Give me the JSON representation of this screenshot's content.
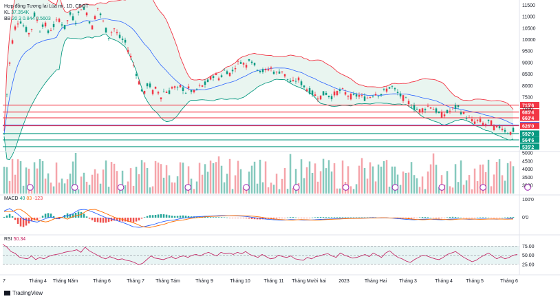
{
  "header": {
    "symbol_line": "Hợp đồng Tương lai Lúa mì, 1D, CBOT",
    "volume_label": "KL",
    "volume_value": "37.354K",
    "bb_label": "BB",
    "bb_value": "20 2 0.844 0.5603"
  },
  "price_axis": {
    "ticks": [
      "11500",
      "11000",
      "10500",
      "10000",
      "9500",
      "9000",
      "8500",
      "8000",
      "7500",
      "7000"
    ]
  },
  "horizontal_levels": [
    {
      "label": "715'6",
      "value": 7157.5,
      "color": "#f23645"
    },
    {
      "label": "685'4",
      "value": 6855,
      "color": "#f23645"
    },
    {
      "label": "660'4",
      "value": 6605,
      "color": "#f23645"
    },
    {
      "label": "628'6",
      "value": 6287.5,
      "color": "#2962ff"
    },
    {
      "label": "626'0",
      "value": 6260,
      "color": "#f23645"
    },
    {
      "label": "592'0",
      "value": 5920,
      "color": "#089981"
    },
    {
      "label": "564'6",
      "value": 5647.5,
      "color": "#089981"
    },
    {
      "label": "535'2",
      "value": 5352.5,
      "color": "#089981"
    }
  ],
  "volume_axis": {
    "ticks": [
      "5000",
      "4500",
      "4000",
      "3500",
      "3000"
    ]
  },
  "macd": {
    "label": "MACD",
    "v1": "40",
    "v2": "83",
    "v3": "-123",
    "ticks": [
      "100'0",
      "0'0"
    ]
  },
  "rsi": {
    "label": "RSI",
    "value": "50.34",
    "ticks": [
      "75.00",
      "50.00",
      "25.00"
    ]
  },
  "time_axis": {
    "labels": [
      "7",
      "Tháng 4",
      "Tháng Năm",
      "Tháng 6",
      "Tháng 7",
      "Tháng Tám",
      "Tháng 9",
      "Tháng 10",
      "Tháng 11",
      "Tháng Mười hai",
      "2023",
      "Tháng Hai",
      "Tháng 3",
      "Tháng 4",
      "Tháng 5",
      "Tháng 6"
    ]
  },
  "watermark": "TradingView",
  "colors": {
    "up": "#089981",
    "down": "#f23645",
    "upper_band": "#f23645",
    "lower_band": "#089981",
    "basis": "#2962ff",
    "band_fill": "#e3f3ec",
    "macd_line": "#2962ff",
    "signal_line": "#ff6d00",
    "rsi_line": "#c2185b",
    "rsi_fill": "#e8f4f4"
  },
  "chart_data": {
    "type": "candlestick",
    "price_range": [
      5200,
      11600
    ],
    "time_range": [
      "2022-03",
      "2023-06"
    ],
    "horizontal_levels": [
      7157.5,
      6855,
      6605,
      6287.5,
      6260,
      5920,
      5647.5,
      5352.5
    ],
    "volume_range": [
      2500,
      5000
    ],
    "rsi_range": [
      0,
      100
    ],
    "rsi_bands": [
      25,
      75
    ],
    "price_path": [
      [
        0,
        5900
      ],
      [
        6,
        8500
      ],
      [
        14,
        10400
      ],
      [
        22,
        10900
      ],
      [
        30,
        10500
      ],
      [
        38,
        10200
      ],
      [
        45,
        11200
      ],
      [
        52,
        10400
      ],
      [
        58,
        10800
      ],
      [
        64,
        10300
      ],
      [
        72,
        10600
      ],
      [
        80,
        10900
      ],
      [
        88,
        10500
      ],
      [
        96,
        11100
      ],
      [
        104,
        10800
      ],
      [
        112,
        11400
      ],
      [
        120,
        11200
      ],
      [
        128,
        10500
      ],
      [
        136,
        11400
      ],
      [
        144,
        10800
      ],
      [
        152,
        10100
      ],
      [
        160,
        10500
      ],
      [
        168,
        10100
      ],
      [
        176,
        9900
      ],
      [
        184,
        9300
      ],
      [
        192,
        8600
      ],
      [
        198,
        8000
      ],
      [
        204,
        7600
      ],
      [
        210,
        8200
      ],
      [
        216,
        7700
      ],
      [
        222,
        7900
      ],
      [
        228,
        7500
      ],
      [
        234,
        7800
      ],
      [
        240,
        7700
      ],
      [
        246,
        8000
      ],
      [
        252,
        7800
      ],
      [
        258,
        8000
      ],
      [
        264,
        7700
      ],
      [
        270,
        7900
      ],
      [
        276,
        7650
      ],
      [
        282,
        7900
      ],
      [
        290,
        8000
      ],
      [
        298,
        8200
      ],
      [
        306,
        8500
      ],
      [
        314,
        8300
      ],
      [
        322,
        8700
      ],
      [
        330,
        8500
      ],
      [
        338,
        8900
      ],
      [
        346,
        9100
      ],
      [
        352,
        8800
      ],
      [
        358,
        9300
      ],
      [
        364,
        8900
      ],
      [
        372,
        8700
      ],
      [
        380,
        8600
      ],
      [
        388,
        8800
      ],
      [
        396,
        8500
      ],
      [
        404,
        8700
      ],
      [
        412,
        8300
      ],
      [
        420,
        8100
      ],
      [
        428,
        8300
      ],
      [
        436,
        8000
      ],
      [
        444,
        7800
      ],
      [
        452,
        7600
      ],
      [
        460,
        7500
      ],
      [
        468,
        7700
      ],
      [
        476,
        7500
      ],
      [
        484,
        7700
      ],
      [
        492,
        7800
      ],
      [
        500,
        7600
      ],
      [
        508,
        7500
      ],
      [
        516,
        7600
      ],
      [
        524,
        7450
      ],
      [
        532,
        7500
      ],
      [
        540,
        7700
      ],
      [
        548,
        7600
      ],
      [
        556,
        7800
      ],
      [
        564,
        8000
      ],
      [
        572,
        7700
      ],
      [
        580,
        7500
      ],
      [
        588,
        7300
      ],
      [
        596,
        7100
      ],
      [
        604,
        6900
      ],
      [
        612,
        7000
      ],
      [
        620,
        7150
      ],
      [
        628,
        6950
      ],
      [
        636,
        6700
      ],
      [
        644,
        6800
      ],
      [
        652,
        6950
      ],
      [
        660,
        7100
      ],
      [
        668,
        6800
      ],
      [
        676,
        6600
      ],
      [
        684,
        6400
      ],
      [
        692,
        6500
      ],
      [
        700,
        6300
      ],
      [
        708,
        6450
      ],
      [
        716,
        6100
      ],
      [
        724,
        6250
      ],
      [
        732,
        6000
      ],
      [
        740,
        5950
      ],
      [
        746,
        6250
      ],
      [
        750,
        6300
      ]
    ],
    "macd_path": [
      [
        0,
        40
      ],
      [
        10,
        60
      ],
      [
        20,
        30
      ],
      [
        30,
        -10
      ],
      [
        40,
        -20
      ],
      [
        50,
        -30
      ],
      [
        60,
        -10
      ],
      [
        70,
        5
      ],
      [
        80,
        -10
      ],
      [
        90,
        10
      ],
      [
        100,
        20
      ],
      [
        110,
        50
      ],
      [
        120,
        55
      ],
      [
        130,
        40
      ],
      [
        140,
        20
      ],
      [
        150,
        0
      ],
      [
        160,
        -10
      ],
      [
        170,
        -25
      ],
      [
        180,
        -40
      ],
      [
        190,
        -60
      ],
      [
        200,
        -65
      ],
      [
        210,
        -55
      ],
      [
        220,
        -45
      ],
      [
        230,
        -30
      ],
      [
        240,
        -20
      ],
      [
        250,
        -15
      ],
      [
        260,
        -5
      ],
      [
        270,
        0
      ],
      [
        280,
        5
      ],
      [
        290,
        8
      ],
      [
        300,
        10
      ],
      [
        310,
        12
      ],
      [
        320,
        14
      ],
      [
        330,
        13
      ],
      [
        340,
        12
      ],
      [
        350,
        10
      ],
      [
        360,
        5
      ],
      [
        370,
        -2
      ],
      [
        380,
        -8
      ],
      [
        390,
        -12
      ],
      [
        400,
        -15
      ],
      [
        410,
        -16
      ],
      [
        420,
        -12
      ],
      [
        430,
        -14
      ],
      [
        440,
        -16
      ],
      [
        450,
        -15
      ],
      [
        460,
        -12
      ],
      [
        470,
        -10
      ],
      [
        480,
        -8
      ],
      [
        490,
        -6
      ],
      [
        500,
        -5
      ],
      [
        510,
        -4
      ],
      [
        520,
        -3
      ],
      [
        530,
        -2
      ],
      [
        540,
        0
      ],
      [
        550,
        -2
      ],
      [
        560,
        -1
      ],
      [
        570,
        -4
      ],
      [
        580,
        -8
      ],
      [
        590,
        -12
      ],
      [
        600,
        -14
      ],
      [
        610,
        -10
      ],
      [
        620,
        -9
      ],
      [
        630,
        -12
      ],
      [
        640,
        -14
      ],
      [
        650,
        -10
      ],
      [
        660,
        -8
      ],
      [
        670,
        -9
      ],
      [
        680,
        -11
      ],
      [
        690,
        -10
      ],
      [
        700,
        -8
      ],
      [
        710,
        -9
      ],
      [
        720,
        -10
      ],
      [
        730,
        -9
      ],
      [
        740,
        -6
      ],
      [
        750,
        -4
      ]
    ],
    "rsi_path": [
      [
        0,
        80
      ],
      [
        6,
        72
      ],
      [
        12,
        60
      ],
      [
        18,
        55
      ],
      [
        24,
        45
      ],
      [
        30,
        42
      ],
      [
        36,
        40
      ],
      [
        42,
        48
      ],
      [
        48,
        38
      ],
      [
        54,
        44
      ],
      [
        60,
        40
      ],
      [
        66,
        46
      ],
      [
        72,
        50
      ],
      [
        78,
        52
      ],
      [
        84,
        54
      ],
      [
        90,
        58
      ],
      [
        96,
        60
      ],
      [
        102,
        62
      ],
      [
        108,
        65
      ],
      [
        114,
        58
      ],
      [
        120,
        72
      ],
      [
        126,
        62
      ],
      [
        132,
        56
      ],
      [
        138,
        50
      ],
      [
        144,
        44
      ],
      [
        150,
        40
      ],
      [
        156,
        46
      ],
      [
        162,
        42
      ],
      [
        168,
        38
      ],
      [
        174,
        40
      ],
      [
        180,
        36
      ],
      [
        186,
        34
      ],
      [
        192,
        30
      ],
      [
        198,
        24
      ],
      [
        204,
        28
      ],
      [
        210,
        38
      ],
      [
        216,
        48
      ],
      [
        222,
        42
      ],
      [
        228,
        40
      ],
      [
        234,
        38
      ],
      [
        240,
        42
      ],
      [
        246,
        46
      ],
      [
        252,
        40
      ],
      [
        258,
        46
      ],
      [
        264,
        48
      ],
      [
        270,
        44
      ],
      [
        276,
        50
      ],
      [
        282,
        52
      ],
      [
        288,
        48
      ],
      [
        294,
        54
      ],
      [
        300,
        58
      ],
      [
        306,
        52
      ],
      [
        312,
        48
      ],
      [
        318,
        58
      ],
      [
        324,
        54
      ],
      [
        330,
        56
      ],
      [
        336,
        52
      ],
      [
        342,
        58
      ],
      [
        348,
        54
      ],
      [
        354,
        60
      ],
      [
        360,
        52
      ],
      [
        366,
        48
      ],
      [
        372,
        44
      ],
      [
        378,
        52
      ],
      [
        384,
        46
      ],
      [
        390,
        40
      ],
      [
        396,
        42
      ],
      [
        402,
        50
      ],
      [
        408,
        46
      ],
      [
        414,
        44
      ],
      [
        420,
        48
      ],
      [
        426,
        40
      ],
      [
        432,
        38
      ],
      [
        438,
        36
      ],
      [
        444,
        44
      ],
      [
        450,
        40
      ],
      [
        456,
        46
      ],
      [
        462,
        48
      ],
      [
        468,
        52
      ],
      [
        474,
        54
      ],
      [
        480,
        48
      ],
      [
        486,
        44
      ],
      [
        492,
        56
      ],
      [
        498,
        50
      ],
      [
        504,
        46
      ],
      [
        510,
        42
      ],
      [
        516,
        44
      ],
      [
        522,
        48
      ],
      [
        528,
        52
      ],
      [
        534,
        46
      ],
      [
        540,
        56
      ],
      [
        546,
        50
      ],
      [
        552,
        44
      ],
      [
        558,
        56
      ],
      [
        564,
        62
      ],
      [
        570,
        52
      ],
      [
        576,
        44
      ],
      [
        582,
        40
      ],
      [
        588,
        34
      ],
      [
        594,
        30
      ],
      [
        600,
        38
      ],
      [
        606,
        44
      ],
      [
        612,
        50
      ],
      [
        618,
        48
      ],
      [
        624,
        44
      ],
      [
        630,
        40
      ],
      [
        636,
        38
      ],
      [
        642,
        44
      ],
      [
        648,
        52
      ],
      [
        654,
        56
      ],
      [
        660,
        60
      ],
      [
        666,
        52
      ],
      [
        672,
        44
      ],
      [
        678,
        38
      ],
      [
        684,
        32
      ],
      [
        690,
        36
      ],
      [
        696,
        44
      ],
      [
        702,
        50
      ],
      [
        708,
        56
      ],
      [
        714,
        48
      ],
      [
        720,
        40
      ],
      [
        726,
        46
      ],
      [
        732,
        40
      ],
      [
        738,
        44
      ],
      [
        744,
        50
      ],
      [
        750,
        52
      ]
    ]
  }
}
